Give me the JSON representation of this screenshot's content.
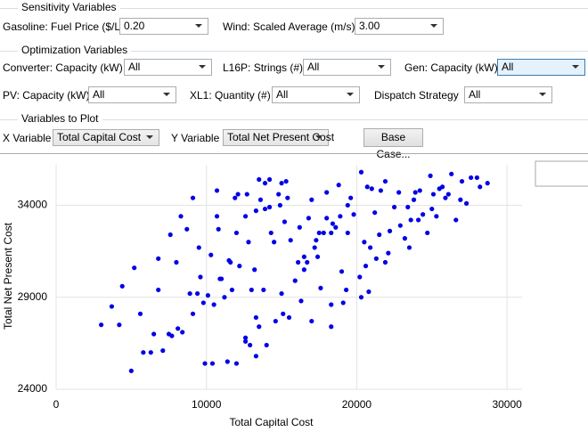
{
  "sensitivity": {
    "title": "Sensitivity Variables",
    "fields": [
      {
        "label": "Gasoline: Fuel Price ($/L)",
        "value": "0.20"
      },
      {
        "label": "Wind: Scaled Average (m/s)",
        "value": "3.00"
      }
    ]
  },
  "optimization": {
    "title": "Optimization Variables",
    "fields": [
      {
        "label": "Converter: Capacity (kW)",
        "value": "All"
      },
      {
        "label": "L16P: Strings (#)",
        "value": "All"
      },
      {
        "label": "Gen: Capacity (kW)",
        "value": "All"
      },
      {
        "label": "PV: Capacity (kW)",
        "value": "All"
      },
      {
        "label": "XL1: Quantity (#)",
        "value": "All"
      },
      {
        "label": "Dispatch Strategy",
        "value": "All"
      }
    ]
  },
  "plot_variables": {
    "title": "Variables to Plot",
    "x_label": "X Variable",
    "x_value": "Total Capital Cost",
    "y_label": "Y Variable",
    "y_value": "Total Net Present Cost",
    "button": "Base Case..."
  },
  "chart_data": {
    "type": "scatter",
    "xlabel": "Total Capital Cost",
    "ylabel": "Total Net Present Cost",
    "color": "#0000e6",
    "xlim": [
      0,
      31000
    ],
    "ylim": [
      24000,
      36200
    ],
    "xticks": [
      0,
      10000,
      20000,
      30000
    ],
    "yticks": [
      24000,
      29000,
      34000
    ],
    "grid": true,
    "x": [
      3000,
      3700,
      4200,
      4400,
      5000,
      5200,
      5600,
      5800,
      6300,
      6500,
      6800,
      6800,
      7100,
      7500,
      7600,
      7700,
      8000,
      8100,
      8300,
      8400,
      8700,
      8900,
      9100,
      9100,
      9400,
      9500,
      9600,
      9800,
      9900,
      10100,
      10300,
      10400,
      10500,
      10700,
      10700,
      10800,
      10900,
      11000,
      11200,
      11400,
      11500,
      11600,
      11700,
      11900,
      12000,
      12000,
      12100,
      12200,
      12600,
      12600,
      12600,
      12700,
      12800,
      12900,
      13000,
      13200,
      13300,
      13300,
      13300,
      13500,
      13500,
      13600,
      13800,
      13900,
      13900,
      14000,
      14200,
      14200,
      14300,
      14500,
      14600,
      14800,
      14900,
      15000,
      15000,
      15100,
      15200,
      15300,
      15400,
      15500,
      15600,
      15900,
      16100,
      16200,
      16300,
      16500,
      16500,
      16700,
      16800,
      17000,
      17000,
      17200,
      17300,
      17400,
      17500,
      17600,
      17800,
      18000,
      18000,
      18300,
      18300,
      18300,
      18400,
      18600,
      18800,
      18900,
      19000,
      19100,
      19300,
      19400,
      19400,
      19600,
      19800,
      20200,
      20300,
      20300,
      20500,
      20600,
      20700,
      20800,
      20900,
      21000,
      21200,
      21300,
      21500,
      21600,
      21900,
      21900,
      22100,
      22200,
      22500,
      22800,
      22900,
      23200,
      23400,
      23500,
      23600,
      23800,
      23900,
      24100,
      24200,
      24400,
      24700,
      24900,
      25000,
      25100,
      25300,
      25500,
      25700,
      25900,
      26100,
      26300,
      26600,
      26900,
      27000,
      27300,
      27600,
      28000,
      28200,
      28700
    ],
    "values": [
      27500,
      28500,
      27500,
      29600,
      25000,
      30600,
      28100,
      26000,
      26000,
      27000,
      31100,
      29400,
      26100,
      27000,
      32400,
      26900,
      30900,
      27300,
      33400,
      27100,
      32700,
      29200,
      34400,
      28100,
      29200,
      31700,
      30100,
      28700,
      25400,
      29100,
      31300,
      25400,
      28600,
      34800,
      33400,
      32700,
      30000,
      30000,
      29000,
      25500,
      31000,
      30900,
      29400,
      34400,
      32500,
      25400,
      34600,
      30700,
      26800,
      26600,
      33400,
      34600,
      32000,
      26400,
      29400,
      30500,
      33700,
      27900,
      25800,
      35400,
      27400,
      34300,
      29400,
      33800,
      35200,
      26400,
      33900,
      35400,
      32500,
      32000,
      27700,
      34600,
      34000,
      29200,
      35200,
      28100,
      33100,
      35300,
      34400,
      27900,
      32100,
      29900,
      30900,
      32800,
      28800,
      30500,
      31200,
      30900,
      33300,
      27700,
      34300,
      31700,
      32100,
      31200,
      32500,
      29500,
      32500,
      33300,
      34700,
      27400,
      28600,
      32500,
      33000,
      32800,
      35100,
      33400,
      30400,
      28700,
      29400,
      34000,
      32500,
      34400,
      33500,
      30100,
      35800,
      29000,
      32000,
      30700,
      35000,
      29300,
      31700,
      34900,
      33600,
      31100,
      32400,
      34800,
      30900,
      35300,
      31400,
      32600,
      33900,
      34700,
      32900,
      32200,
      33900,
      31700,
      33200,
      34300,
      34700,
      33200,
      34800,
      33500,
      32500,
      35600,
      33800,
      34600,
      33400,
      34900,
      35000,
      34400,
      34600,
      35700,
      33200,
      34300,
      35300,
      34100,
      35500,
      35500,
      35000,
      35200
    ]
  }
}
